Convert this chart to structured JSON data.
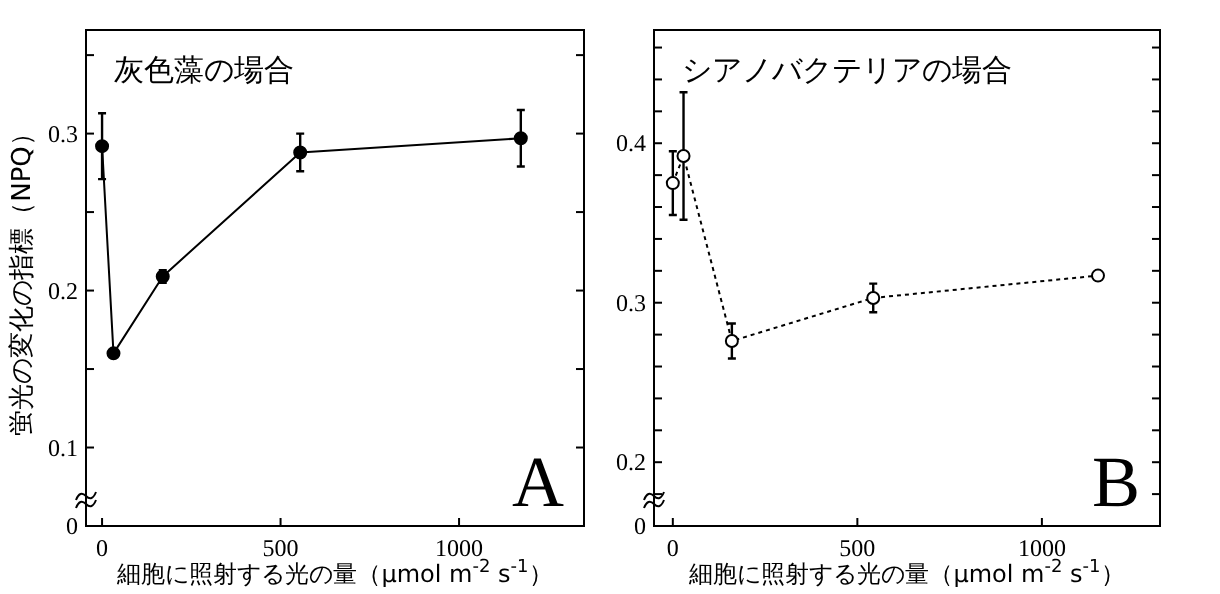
{
  "chart_data": [
    {
      "type": "line",
      "title": "灰色藻の場合",
      "xlabel": "細胞に照射する光の量（μmol m$^{-2}$ s$^{-1}$）",
      "ylabel": "蛍光の変化の指標（NPQ）",
      "annotations": [
        "A"
      ],
      "marker": "circle",
      "line_style": "solid",
      "x": [
        0,
        32,
        170,
        555,
        1173
      ],
      "series": [
        {
          "color": "#000000",
          "values": [
            0.292,
            0.16,
            0.209,
            0.288,
            0.297
          ],
          "errors": [
            0.021,
            null,
            0.004,
            0.012,
            0.018
          ]
        }
      ],
      "xlim": [
        -45,
        1350
      ],
      "xticks": [
        0,
        500,
        1000
      ],
      "ylim": [
        0.05,
        0.366
      ],
      "yticks": [
        {
          "value": 0.05,
          "label": "0"
        },
        0.1,
        {
          "value": 0.15,
          "label": null
        },
        0.2,
        {
          "value": 0.25,
          "label": null
        },
        0.3,
        {
          "value": 0.35,
          "label": null
        }
      ]
    },
    {
      "type": "line",
      "title": "シアノバクテリアの場合",
      "xlabel": "細胞に照射する光の量（μmol m$^{-2}$ s$^{-1}$）",
      "annotations": [
        "B"
      ],
      "marker": "circle",
      "line_style": "dotted",
      "x": [
        0,
        29,
        160,
        543,
        1152
      ],
      "series": [
        {
          "color": "#000000",
          "values": [
            0.375,
            0.392,
            0.276,
            0.303,
            0.317
          ],
          "errors": [
            0.02,
            0.04,
            0.011,
            0.009,
            null
          ]
        }
      ],
      "xlim": [
        -51,
        1320
      ],
      "xticks": [
        0,
        500,
        1000
      ],
      "ylim": [
        0.16,
        0.471
      ],
      "yticks": [
        {
          "value": 0.16,
          "label": "0"
        },
        {
          "value": 0.18,
          "label": null
        },
        0.2,
        {
          "value": 0.22,
          "label": null
        },
        {
          "value": 0.24,
          "label": null
        },
        {
          "value": 0.26,
          "label": null
        },
        {
          "value": 0.28,
          "label": null
        },
        0.3,
        {
          "value": 0.32,
          "label": null
        },
        {
          "value": 0.34,
          "label": null
        },
        {
          "value": 0.36,
          "label": null
        },
        {
          "value": 0.38,
          "label": null
        },
        0.4,
        {
          "value": 0.42,
          "label": null
        },
        {
          "value": 0.44,
          "label": null
        },
        {
          "value": 0.46,
          "label": null
        }
      ]
    }
  ]
}
